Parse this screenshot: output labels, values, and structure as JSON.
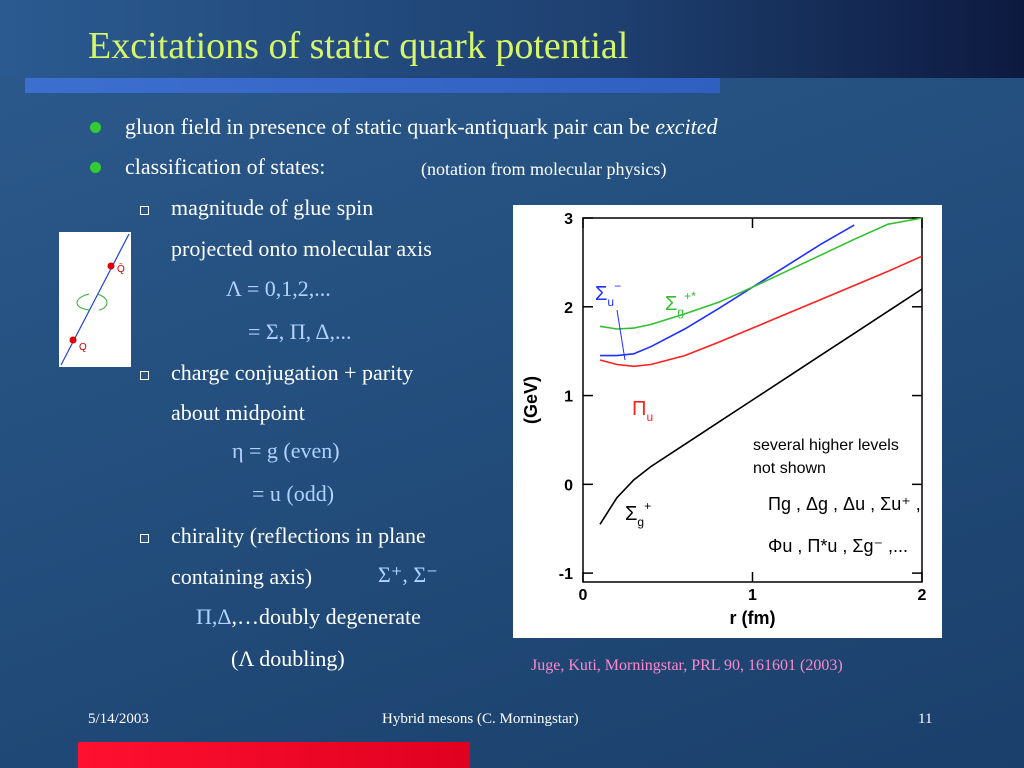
{
  "title": "Excitations of static quark potential",
  "bullets": [
    {
      "text": "gluon field in presence of static quark-antiquark pair can be",
      "emph": "excited"
    },
    {
      "text": "classification of states:",
      "note": "(notation from molecular physics)"
    }
  ],
  "subbullets": [
    {
      "lines": [
        "magnitude of glue spin",
        "projected onto molecular axis"
      ],
      "math": [
        "Λ = 0,1,2,...",
        "= Σ, Π, Δ,..."
      ]
    },
    {
      "lines": [
        "charge conjugation + parity",
        "about midpoint"
      ],
      "math": [
        "η = g  (even)",
        "= u  (odd)"
      ]
    },
    {
      "lines": [
        "chirality (reflections in plane",
        "containing axis)"
      ],
      "inline_math": "Σ⁺, Σ⁻",
      "extra": [
        {
          "math": "Π,Δ",
          "text": ",…doubly degenerate"
        },
        {
          "text": "(Λ doubling)"
        }
      ]
    }
  ],
  "diagram": {
    "top_label": "Q̄",
    "bottom_label": "Q"
  },
  "chart_data": {
    "type": "line",
    "xlabel": "r (fm)",
    "ylabel": "(GeV)",
    "xlim": [
      0,
      2
    ],
    "ylim": [
      -1.1,
      3
    ],
    "xticks": [
      0,
      1,
      2
    ],
    "yticks": [
      -1,
      0,
      1,
      2,
      3
    ],
    "x": [
      0.1,
      0.2,
      0.3,
      0.4,
      0.6,
      0.8,
      1.0,
      1.2,
      1.4,
      1.6,
      1.8,
      2.0
    ],
    "series": [
      {
        "name": "Σ",
        "sub": "g",
        "sup": "+",
        "color": "#000000",
        "values": [
          -0.45,
          -0.15,
          0.05,
          0.2,
          0.45,
          0.7,
          0.95,
          1.2,
          1.45,
          1.7,
          1.95,
          2.2
        ]
      },
      {
        "name": "Π",
        "sub": "u",
        "color": "#ff2020",
        "values": [
          1.4,
          1.35,
          1.33,
          1.35,
          1.45,
          1.6,
          1.76,
          1.92,
          2.08,
          2.24,
          2.4,
          2.57
        ]
      },
      {
        "name": "Σ",
        "sub": "u",
        "sup": "−",
        "color": "#2030ff",
        "values": [
          1.45,
          1.45,
          1.47,
          1.55,
          1.75,
          1.98,
          2.22,
          2.46,
          2.7,
          2.92,
          null,
          null
        ]
      },
      {
        "name": "Σ",
        "sub": "g",
        "sup": "+*",
        "color": "#30c030",
        "values": [
          1.78,
          1.75,
          1.76,
          1.8,
          1.92,
          2.05,
          2.22,
          2.4,
          2.58,
          2.76,
          2.93,
          3.0
        ]
      }
    ],
    "annotation": [
      "several higher levels",
      "not shown"
    ],
    "more_states": [
      "Πg , Δg , Δu , Σu⁺ ,",
      "Φu , Π*u , Σg⁻ ,..."
    ]
  },
  "citation": "Juge, Kuti, Morningstar, PRL 90, 161601 (2003)",
  "footer": {
    "date": "5/14/2003",
    "center": "Hybrid mesons (C. Morningstar)",
    "page": "11"
  }
}
